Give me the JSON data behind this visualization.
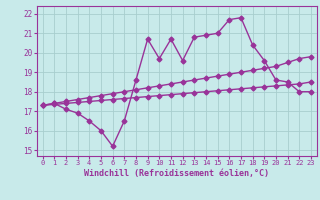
{
  "background_color": "#c8eaea",
  "grid_color": "#a8cece",
  "line_color": "#993399",
  "x_ticks": [
    0,
    1,
    2,
    3,
    4,
    5,
    6,
    7,
    8,
    9,
    10,
    11,
    12,
    13,
    14,
    15,
    16,
    17,
    18,
    19,
    20,
    21,
    22,
    23
  ],
  "y_ticks": [
    15,
    16,
    17,
    18,
    19,
    20,
    21,
    22
  ],
  "xlim": [
    -0.5,
    23.5
  ],
  "ylim": [
    14.7,
    22.4
  ],
  "xlabel": "Windchill (Refroidissement éolien,°C)",
  "curve1_x": [
    0,
    1,
    2,
    3,
    4,
    5,
    6,
    7,
    8,
    9,
    10,
    11,
    12,
    13,
    14,
    15,
    16,
    17,
    18,
    19,
    20,
    21,
    22,
    23
  ],
  "curve1_y": [
    17.3,
    17.4,
    17.1,
    16.9,
    16.5,
    16.0,
    15.2,
    16.5,
    18.6,
    20.7,
    19.7,
    20.7,
    19.6,
    20.8,
    20.9,
    21.0,
    21.7,
    21.8,
    20.4,
    19.6,
    18.6,
    18.5,
    18.0,
    18.0
  ],
  "curve2_x": [
    0,
    1,
    2,
    3,
    4,
    5,
    6,
    7,
    8,
    9,
    10,
    11,
    12,
    13,
    14,
    15,
    16,
    17,
    18,
    19,
    20,
    21,
    22,
    23
  ],
  "curve2_y": [
    17.3,
    17.4,
    17.5,
    17.6,
    17.7,
    17.8,
    17.9,
    18.0,
    18.1,
    18.2,
    18.3,
    18.4,
    18.5,
    18.6,
    18.7,
    18.8,
    18.9,
    19.0,
    19.1,
    19.2,
    19.3,
    19.5,
    19.7,
    19.8
  ],
  "curve3_x": [
    0,
    1,
    2,
    3,
    4,
    5,
    6,
    7,
    8,
    9,
    10,
    11,
    12,
    13,
    14,
    15,
    16,
    17,
    18,
    19,
    20,
    21,
    22,
    23
  ],
  "curve3_y": [
    17.3,
    17.35,
    17.4,
    17.45,
    17.5,
    17.55,
    17.6,
    17.65,
    17.7,
    17.75,
    17.8,
    17.85,
    17.9,
    17.95,
    18.0,
    18.05,
    18.1,
    18.15,
    18.2,
    18.25,
    18.3,
    18.35,
    18.4,
    18.5
  ],
  "marker": "D",
  "markersize": 2.5,
  "linewidth": 1.0
}
